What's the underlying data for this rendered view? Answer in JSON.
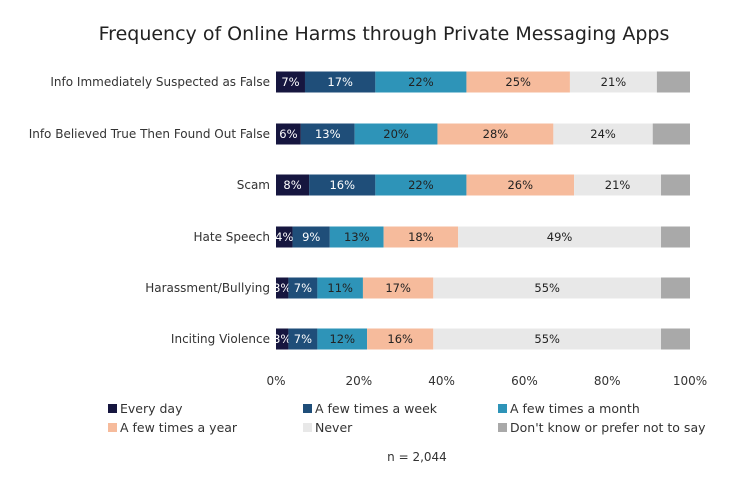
{
  "chart_data": {
    "type": "bar",
    "orientation": "horizontal",
    "stacked": true,
    "title": "Frequency of Online Harms through Private Messaging Apps",
    "categories": [
      "Info Immediately Suspected as False",
      "Info Believed True Then Found Out False",
      "Scam",
      "Hate Speech",
      "Harassment/Bullying",
      "Inciting Violence"
    ],
    "series": [
      {
        "name": "Every day",
        "color": "#16163f",
        "values": [
          7,
          6,
          8,
          4,
          3,
          3
        ]
      },
      {
        "name": "A few times a week",
        "color": "#1f4e79",
        "values": [
          17,
          13,
          16,
          9,
          7,
          7
        ]
      },
      {
        "name": "A few times a month",
        "color": "#2e94b8",
        "values": [
          22,
          20,
          22,
          13,
          11,
          12
        ]
      },
      {
        "name": "A few times a year",
        "color": "#f6bb9c",
        "values": [
          25,
          28,
          26,
          18,
          17,
          16
        ]
      },
      {
        "name": "Never",
        "color": "#e8e8e8",
        "values": [
          21,
          24,
          21,
          49,
          55,
          55
        ]
      },
      {
        "name": "Don't know or prefer not to say",
        "color": "#a9a9a9",
        "values": [
          8,
          9,
          7,
          8,
          7,
          7
        ]
      }
    ],
    "labels_shown": [
      [
        "7%",
        "17%",
        "22%",
        "25%",
        "21%",
        ""
      ],
      [
        "6%",
        "13%",
        "20%",
        "28%",
        "24%",
        ""
      ],
      [
        "8%",
        "16%",
        "22%",
        "26%",
        "21%",
        ""
      ],
      [
        "4%",
        "9%",
        "13%",
        "18%",
        "49%",
        ""
      ],
      [
        "3%",
        "7%",
        "11%",
        "17%",
        "55%",
        ""
      ],
      [
        "3%",
        "7%",
        "12%",
        "16%",
        "55%",
        ""
      ]
    ],
    "label_colors": [
      "#ffffff",
      "#ffffff",
      "#222222",
      "#222222",
      "#222222",
      "#222222"
    ],
    "xlim": [
      0,
      100
    ],
    "x_ticks": [
      "0%",
      "20%",
      "40%",
      "60%",
      "80%",
      "100%"
    ],
    "grid": false,
    "legend_position": "bottom",
    "note": "n = 2,044"
  }
}
